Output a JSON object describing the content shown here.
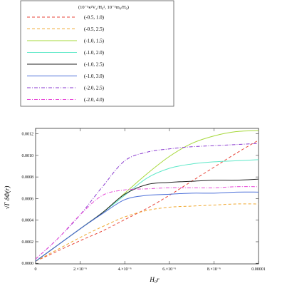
{
  "chart_data": {
    "type": "line",
    "xlabel": "H₀r",
    "ylabel": "√Γ δΦ(r)",
    "legend_title": "(10⁻⁵κ²V₂/H₀², 10⁻⁵m₀/H₀)",
    "xlim": [
      0,
      1e-05
    ],
    "ylim": [
      -5e-06,
      0.00125
    ],
    "x_ticks": [
      {
        "value": 0,
        "label": "0"
      },
      {
        "value": 2e-06,
        "label": "2.×10⁻⁶"
      },
      {
        "value": 4e-06,
        "label": "4.×10⁻⁶"
      },
      {
        "value": 6e-06,
        "label": "6.×10⁻⁶"
      },
      {
        "value": 8e-06,
        "label": "8.×10⁻⁶"
      },
      {
        "value": 1e-05,
        "label": "0.00001"
      }
    ],
    "y_ticks": [
      {
        "value": 0,
        "label": "0.0000"
      },
      {
        "value": 0.0002,
        "label": "0.0002"
      },
      {
        "value": 0.0004,
        "label": "0.0004"
      },
      {
        "value": 0.0006,
        "label": "0.0006"
      },
      {
        "value": 0.0008,
        "label": "0.0008"
      },
      {
        "value": 0.001,
        "label": "0.0010"
      },
      {
        "value": 0.0012,
        "label": "0.0012"
      }
    ],
    "series": [
      {
        "name": "(-0.5, 1.0)",
        "color": "#e8463a",
        "dash": "dashed",
        "x": [
          0,
          1e-06,
          2e-06,
          3e-06,
          4e-06,
          5e-06,
          6e-06,
          7e-06,
          8e-06,
          9e-06,
          1e-05
        ],
        "y": [
          2e-05,
          0.000115,
          0.00021,
          0.0003,
          0.000405,
          0.00051,
          0.00063,
          0.00076,
          0.00089,
          0.00102,
          0.00114
        ]
      },
      {
        "name": "(-0.5, 2.5)",
        "color": "#f0a830",
        "dash": "dashed",
        "x": [
          0,
          1e-06,
          2e-06,
          3e-06,
          4e-06,
          5e-06,
          6e-06,
          7e-06,
          8e-06,
          9e-06,
          1e-05
        ],
        "y": [
          2e-05,
          0.00013,
          0.00024,
          0.00034,
          0.00043,
          0.00049,
          0.00052,
          0.00053,
          0.00054,
          0.00055,
          0.00055
        ]
      },
      {
        "name": "(-1.0, 1.5)",
        "color": "#a6d83a",
        "dash": "solid",
        "x": [
          0,
          1e-06,
          2e-06,
          3e-06,
          4e-06,
          5e-06,
          6e-06,
          7e-06,
          8e-06,
          9e-06,
          1e-05
        ],
        "y": [
          2e-05,
          0.00017,
          0.00032,
          0.00047,
          0.00065,
          0.00083,
          0.00099,
          0.00111,
          0.00118,
          0.00122,
          0.00123
        ]
      },
      {
        "name": "(-1.0, 2.0)",
        "color": "#5de8c8",
        "dash": "solid",
        "x": [
          0,
          1e-06,
          2e-06,
          3e-06,
          4e-06,
          5e-06,
          6e-06,
          7e-06,
          8e-06,
          9e-06,
          1e-05
        ],
        "y": [
          2e-05,
          0.00017,
          0.00032,
          0.00047,
          0.00063,
          0.00079,
          0.00088,
          0.00092,
          0.00094,
          0.00095,
          0.00096
        ]
      },
      {
        "name": "(-1.0, 2.5)",
        "color": "#222222",
        "dash": "solid",
        "x": [
          0,
          1e-06,
          2e-06,
          3e-06,
          4e-06,
          5e-06,
          6e-06,
          7e-06,
          8e-06,
          9e-06,
          1e-05
        ],
        "y": [
          2e-05,
          0.00017,
          0.00032,
          0.00047,
          0.00064,
          0.00073,
          0.00075,
          0.00076,
          0.00077,
          0.00077,
          0.00078
        ]
      },
      {
        "name": "(-1.0, 3.0)",
        "color": "#4a6ed8",
        "dash": "solid",
        "x": [
          0,
          1e-06,
          2e-06,
          3e-06,
          4e-06,
          5e-06,
          6e-06,
          7e-06,
          8e-06,
          9e-06,
          1e-05
        ],
        "y": [
          2e-05,
          0.00017,
          0.00032,
          0.00046,
          0.00059,
          0.00063,
          0.00064,
          0.00065,
          0.00065,
          0.00066,
          0.00066
        ]
      },
      {
        "name": "(-2.0, 2.5)",
        "color": "#8a3ad0",
        "dash": "dashdot",
        "x": [
          0,
          1e-06,
          2e-06,
          3e-06,
          4e-06,
          5e-06,
          6e-06,
          7e-06,
          8e-06,
          9e-06,
          1e-05
        ],
        "y": [
          4e-05,
          0.00023,
          0.00045,
          0.00071,
          0.00095,
          0.00103,
          0.00106,
          0.00108,
          0.00109,
          0.0011,
          0.00111
        ]
      },
      {
        "name": "(-2.0, 4.0)",
        "color": "#e84ad8",
        "dash": "dashdot",
        "x": [
          0,
          1e-06,
          2e-06,
          3e-06,
          4e-06,
          5e-06,
          6e-06,
          7e-06,
          8e-06,
          9e-06,
          1e-05
        ],
        "y": [
          4e-05,
          0.00023,
          0.00045,
          0.00063,
          0.00068,
          0.00069,
          0.0007,
          0.0007,
          0.0007,
          0.00071,
          0.00071
        ]
      }
    ]
  }
}
